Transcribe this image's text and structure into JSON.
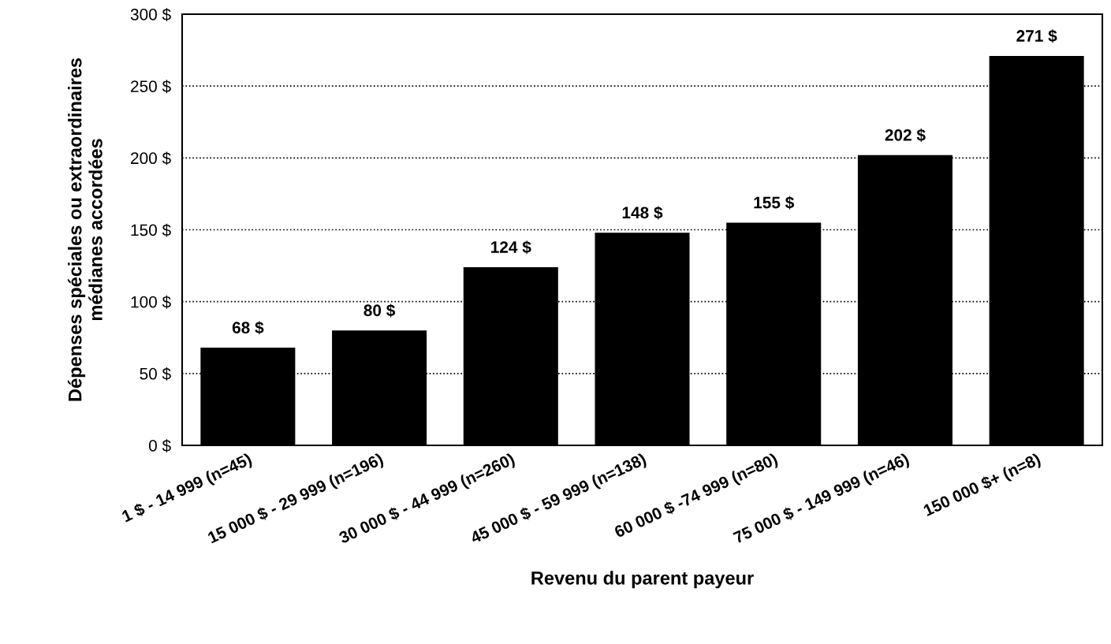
{
  "chart_data": {
    "type": "bar",
    "xlabel": "Revenu du parent payeur",
    "ylabel": "Dépenses spéciales ou extraordinaires\nmédianes accordées",
    "categories": [
      "1 $ - 14 999 (n=45)",
      "15 000 $ - 29 999 (n=196)",
      "30 000 $ - 44 999 (n=260)",
      "45 000 $ - 59 999 (n=138)",
      "60 000 $ -74 999 (n=80)",
      "75 000 $ - 149 999 (n=46)",
      "150 000 $+ (n=8)"
    ],
    "values": [
      68,
      80,
      124,
      148,
      155,
      202,
      271
    ],
    "value_labels": [
      "68 $",
      "80 $",
      "124 $",
      "148 $",
      "155 $",
      "202 $",
      "271 $"
    ],
    "color": "#000000",
    "ylim": [
      0,
      300
    ],
    "yticks": [
      {
        "value": 0,
        "label": "0 $"
      },
      {
        "value": 50,
        "label": "50 $"
      },
      {
        "value": 100,
        "label": "100 $"
      },
      {
        "value": 150,
        "label": "150 $"
      },
      {
        "value": 200,
        "label": "200 $"
      },
      {
        "value": 250,
        "label": "250 $"
      },
      {
        "value": 300,
        "label": "300 $"
      }
    ],
    "grid": "y",
    "line_style": "dotted",
    "legend": false
  }
}
